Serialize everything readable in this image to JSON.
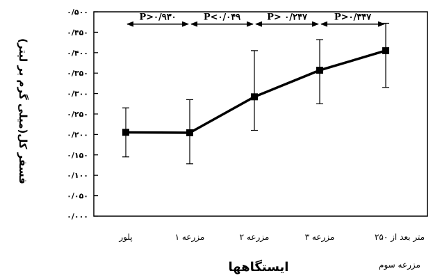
{
  "chart_data": {
    "type": "line",
    "xlabel": "ایستگاهها",
    "ylabel": "فسفر کل(میلی گرم بر لیتر)",
    "categories": [
      "پلور",
      "مزرعه ۱",
      "مزرعه ۲",
      "مزرعه ۳",
      "۲۵۰ متر بعد از"
    ],
    "category_extra": "مزرعه سوم",
    "ylim": [
      0,
      0.5
    ],
    "yticks": [
      {
        "value": 0.5,
        "label": "۰/۵۰۰"
      },
      {
        "value": 0.45,
        "label": "۰/۴۵۰"
      },
      {
        "value": 0.4,
        "label": "۰/۴۰۰"
      },
      {
        "value": 0.35,
        "label": "۰/۳۵۰"
      },
      {
        "value": 0.3,
        "label": "۰/۳۰۰"
      },
      {
        "value": 0.25,
        "label": "۰/۲۵۰"
      },
      {
        "value": 0.2,
        "label": "۰/۲۰۰"
      },
      {
        "value": 0.15,
        "label": "۰/۱۵۰"
      },
      {
        "value": 0.1,
        "label": "۰/۱۰۰"
      },
      {
        "value": 0.05,
        "label": "۰/۰۵۰"
      },
      {
        "value": 0.0,
        "label": "۰/۰۰۰"
      }
    ],
    "grid": false,
    "series": [
      {
        "values": [
          0.205,
          0.204,
          0.292,
          0.357,
          0.405
        ],
        "err_low": [
          0.145,
          0.128,
          0.21,
          0.275,
          0.315
        ],
        "err_high": [
          0.265,
          0.285,
          0.405,
          0.432,
          0.472
        ]
      }
    ],
    "annotations": [
      {
        "text": "P>۰/۹۳۰",
        "from": 0,
        "to": 1
      },
      {
        "text": "P<۰/۰۴۹",
        "from": 1,
        "to": 2
      },
      {
        "text": "P> ۰/۲۴۷",
        "from": 2,
        "to": 3
      },
      {
        "text": "P>۰/۳۴۷",
        "from": 3,
        "to": 4
      }
    ],
    "annotation_level": 0.47,
    "colors": {
      "line": "#000000",
      "axes": "#000000"
    }
  }
}
